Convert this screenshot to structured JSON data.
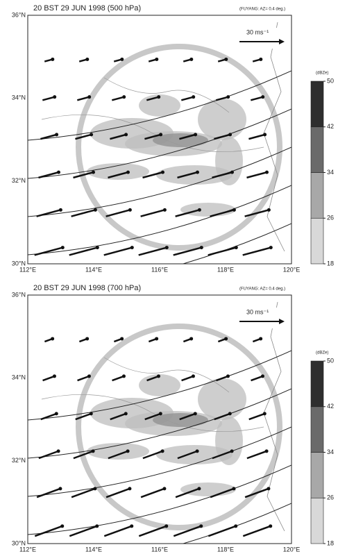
{
  "panels": [
    {
      "title": "20 BST 29 JUN 1998 (500 hPa)",
      "subtitle": "(FUYANG: AZ= 0.4 deg.)",
      "reference_vector": "30 ms⁻¹",
      "lat_labels": [
        "36°N",
        "34°N",
        "32°N",
        "30°N"
      ],
      "lon_labels": [
        "112°E",
        "114°E",
        "116°E",
        "118°E",
        "120°E"
      ],
      "colorbar": {
        "label": "(dBZe)",
        "ticks": [
          18,
          26,
          34,
          42,
          50
        ]
      }
    },
    {
      "title": "20 BST 29 JUN 1998 (700 hPa)",
      "subtitle": "(FUYANG: AZ= 0.4 deg.)",
      "reference_vector": "30 ms⁻¹",
      "lat_labels": [
        "36°N",
        "34°N",
        "32°N",
        "30°N"
      ],
      "lon_labels": [
        "112°E",
        "114°E",
        "116°E",
        "118°E",
        "120°E"
      ],
      "colorbar": {
        "label": "(dBZe)",
        "ticks": [
          18,
          26,
          34,
          42,
          50
        ]
      }
    }
  ]
}
